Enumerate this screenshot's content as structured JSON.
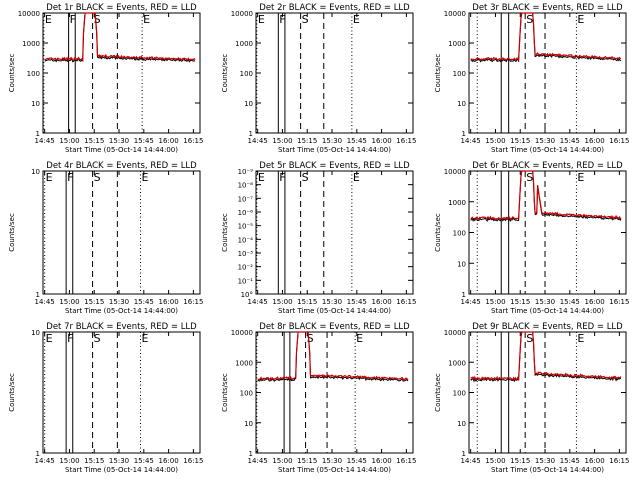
{
  "figure": {
    "background": "#ffffff",
    "colors": {
      "events": "#000000",
      "lld": "#cc0000",
      "axes": "#000000"
    }
  },
  "chart_data": [
    {
      "type": "line",
      "title": "Det 1r BLACK = Events, RED = LLD",
      "xlabel": "Start Time (05-Oct-14 14:44:00)",
      "ylabel": "Counts/sec",
      "xticks": [
        "14:45",
        "15:00",
        "15:15",
        "15:30",
        "15:45",
        "16:00",
        "16:15"
      ],
      "yscale": "log",
      "ylim": [
        1,
        10000
      ],
      "yticks": [
        "1",
        "10",
        "100",
        "1000",
        "10000"
      ],
      "flare": "peak",
      "markers": [
        {
          "label": "E",
          "time_min": 0.5,
          "style": "dotted"
        },
        {
          "label": "F",
          "time_min": 15.5,
          "style": "solid"
        },
        {
          "label": "",
          "time_min": 19.5,
          "style": "solid"
        },
        {
          "label": "S",
          "time_min": 30,
          "style": "dashed"
        },
        {
          "label": "",
          "time_min": 45,
          "style": "dashed"
        },
        {
          "label": "E",
          "time_min": 60,
          "style": "dotted"
        }
      ]
    },
    {
      "type": "line",
      "title": "Det 2r BLACK = Events, RED = LLD",
      "xlabel": "Start Time (05-Oct-14 14:44:00)",
      "ylabel": "Counts/sec",
      "xticks": [
        "14:45",
        "15:00",
        "15:15",
        "15:30",
        "15:45",
        "16:00",
        "16:15"
      ],
      "yscale": "log",
      "ylim": [
        1,
        10000
      ],
      "yticks": [
        "1",
        "10",
        "100",
        "1000",
        "10000"
      ],
      "flare": "none",
      "markers": [
        {
          "label": "E",
          "time_min": 0.5,
          "style": "dotted"
        },
        {
          "label": "F",
          "time_min": 13.5,
          "style": "solid"
        },
        {
          "label": "",
          "time_min": 17.5,
          "style": "solid"
        },
        {
          "label": "S",
          "time_min": 27,
          "style": "dashed"
        },
        {
          "label": "",
          "time_min": 41,
          "style": "dashed"
        },
        {
          "label": "E",
          "time_min": 58,
          "style": "dotted"
        }
      ]
    },
    {
      "type": "line",
      "title": "Det 3r BLACK = Events, RED = LLD",
      "xlabel": "Start Time (05-Oct-14 14:44:00)",
      "ylabel": "Counts/sec",
      "xticks": [
        "14:45",
        "15:00",
        "15:15",
        "15:30",
        "15:45",
        "16:00",
        "16:15"
      ],
      "yscale": "log",
      "ylim": [
        1,
        10000
      ],
      "yticks": [
        "1",
        "10",
        "100",
        "1000",
        "10000"
      ],
      "flare": "wide",
      "markers": [
        {
          "label": "",
          "time_min": 5,
          "style": "dotted"
        },
        {
          "label": "",
          "time_min": 19.5,
          "style": "solid"
        },
        {
          "label": "",
          "time_min": 24,
          "style": "solid"
        },
        {
          "label": "S",
          "time_min": 34,
          "style": "dashed"
        },
        {
          "label": "",
          "time_min": 46,
          "style": "dashed"
        },
        {
          "label": "E",
          "time_min": 65,
          "style": "dotted"
        }
      ]
    },
    {
      "type": "line",
      "title": "Det 4r BLACK = Events, RED = LLD",
      "xlabel": "Start Time (05-Oct-14 14:44:00)",
      "ylabel": "Counts/sec",
      "xticks": [
        "14:45",
        "15:00",
        "15:15",
        "15:30",
        "15:45",
        "16:00",
        "16:15"
      ],
      "yscale": "log",
      "ylim": [
        1,
        10
      ],
      "yticks": [
        "1",
        "10"
      ],
      "flare": "none",
      "markers": [
        {
          "label": "E",
          "time_min": 1,
          "style": "dotted"
        },
        {
          "label": "F",
          "time_min": 14,
          "style": "solid"
        },
        {
          "label": "",
          "time_min": 18,
          "style": "solid"
        },
        {
          "label": "S",
          "time_min": 30,
          "style": "dashed"
        },
        {
          "label": "",
          "time_min": 45,
          "style": "dashed"
        },
        {
          "label": "E",
          "time_min": 59,
          "style": "dotted"
        }
      ]
    },
    {
      "type": "line",
      "title": "Det 5r BLACK = Events, RED = LLD",
      "xlabel": "Start Time (05-Oct-14 14:44:00)",
      "ylabel": "Counts/sec",
      "xticks": [
        "14:45",
        "15:00",
        "15:15",
        "15:30",
        "15:45",
        "16:00",
        "16:15"
      ],
      "yscale": "log",
      "ylim": [
        1,
        1e-09
      ],
      "yticks": [
        "10°",
        "10⁻¹",
        "10⁻²",
        "10⁻³",
        "10⁻⁴",
        "10⁻⁵",
        "10⁻⁶",
        "10⁻⁷",
        "10⁻⁸",
        "10⁻⁹"
      ],
      "flare": "none",
      "markers": [
        {
          "label": "E",
          "time_min": 0.5,
          "style": "dotted"
        },
        {
          "label": "F",
          "time_min": 13.5,
          "style": "solid"
        },
        {
          "label": "",
          "time_min": 17.5,
          "style": "solid"
        },
        {
          "label": "S",
          "time_min": 27,
          "style": "dashed"
        },
        {
          "label": "",
          "time_min": 41,
          "style": "dashed"
        },
        {
          "label": "E",
          "time_min": 58,
          "style": "dotted"
        }
      ]
    },
    {
      "type": "line",
      "title": "Det 6r BLACK = Events, RED = LLD",
      "xlabel": "Start Time (05-Oct-14 14:44:00)",
      "ylabel": "Counts/sec",
      "xticks": [
        "14:45",
        "15:00",
        "15:15",
        "15:30",
        "15:45",
        "16:00",
        "16:15"
      ],
      "yscale": "log",
      "ylim": [
        1,
        10000
      ],
      "yticks": [
        "1",
        "10",
        "100",
        "1000",
        "10000"
      ],
      "flare": "spiky",
      "markers": [
        {
          "label": "",
          "time_min": 5,
          "style": "dotted"
        },
        {
          "label": "",
          "time_min": 19.5,
          "style": "solid"
        },
        {
          "label": "",
          "time_min": 24,
          "style": "solid"
        },
        {
          "label": "S",
          "time_min": 34,
          "style": "dashed"
        },
        {
          "label": "",
          "time_min": 46,
          "style": "dashed"
        },
        {
          "label": "E",
          "time_min": 65,
          "style": "dotted"
        }
      ]
    },
    {
      "type": "line",
      "title": "Det 7r BLACK = Events, RED = LLD",
      "xlabel": "Start Time (05-Oct-14 14:44:00)",
      "ylabel": "Counts/sec",
      "xticks": [
        "14:45",
        "15:00",
        "15:15",
        "15:30",
        "15:45",
        "16:00",
        "16:15"
      ],
      "yscale": "log",
      "ylim": [
        1,
        10
      ],
      "yticks": [
        "1",
        "10"
      ],
      "flare": "none",
      "markers": [
        {
          "label": "E",
          "time_min": 1,
          "style": "dotted"
        },
        {
          "label": "F",
          "time_min": 14,
          "style": "solid"
        },
        {
          "label": "",
          "time_min": 18,
          "style": "solid"
        },
        {
          "label": "S",
          "time_min": 30,
          "style": "dashed"
        },
        {
          "label": "",
          "time_min": 45,
          "style": "dashed"
        },
        {
          "label": "E",
          "time_min": 59,
          "style": "dotted"
        }
      ]
    },
    {
      "type": "line",
      "title": "Det 8r BLACK = Events, RED = LLD",
      "xlabel": "Start Time (05-Oct-14 14:44:00)",
      "ylabel": "Counts/sec",
      "xticks": [
        "14:45",
        "15:00",
        "15:15",
        "15:30",
        "15:45",
        "16:00",
        "16:15"
      ],
      "yscale": "log",
      "ylim": [
        1,
        10000
      ],
      "yticks": [
        "1",
        "10",
        "100",
        "1000",
        "10000"
      ],
      "flare": "peak",
      "markers": [
        {
          "label": "",
          "time_min": 0.5,
          "style": "dotted"
        },
        {
          "label": "",
          "time_min": 17,
          "style": "solid"
        },
        {
          "label": "",
          "time_min": 20.5,
          "style": "solid"
        },
        {
          "label": "S",
          "time_min": 30,
          "style": "dashed"
        },
        {
          "label": "",
          "time_min": 43,
          "style": "dashed"
        },
        {
          "label": "E",
          "time_min": 60,
          "style": "dotted"
        }
      ]
    },
    {
      "type": "line",
      "title": "Det 9r BLACK = Events, RED = LLD",
      "xlabel": "Start Time (05-Oct-14 14:44:00)",
      "ylabel": "Counts/sec",
      "xticks": [
        "14:45",
        "15:00",
        "15:15",
        "15:30",
        "15:45",
        "16:00",
        "16:15"
      ],
      "yscale": "log",
      "ylim": [
        1,
        10000
      ],
      "yticks": [
        "1",
        "10",
        "100",
        "1000",
        "10000"
      ],
      "flare": "wide",
      "markers": [
        {
          "label": "",
          "time_min": 5,
          "style": "dotted"
        },
        {
          "label": "",
          "time_min": 19.5,
          "style": "solid"
        },
        {
          "label": "",
          "time_min": 24,
          "style": "solid"
        },
        {
          "label": "S",
          "time_min": 34,
          "style": "dashed"
        },
        {
          "label": "",
          "time_min": 46,
          "style": "dashed"
        },
        {
          "label": "E",
          "time_min": 65,
          "style": "dotted"
        }
      ]
    }
  ]
}
